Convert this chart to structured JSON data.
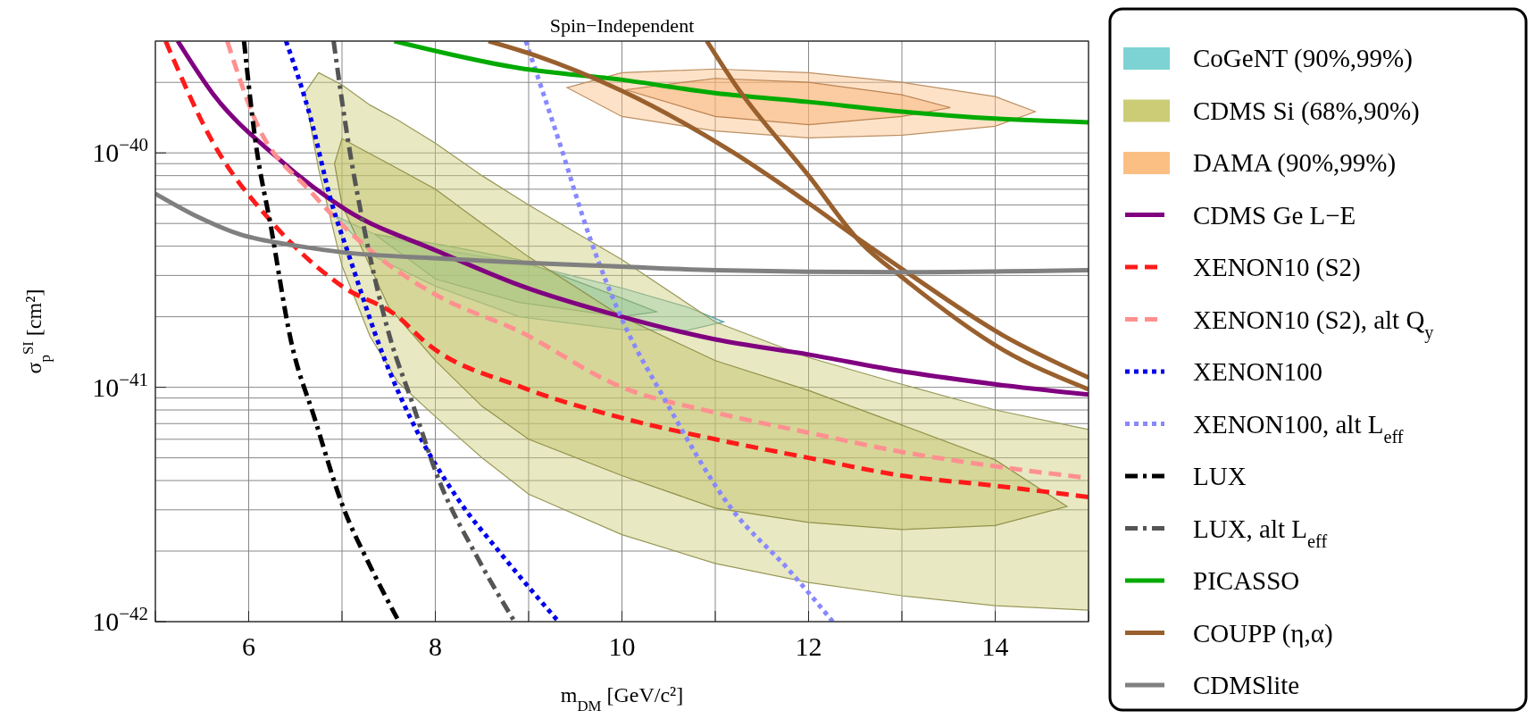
{
  "chart_data": {
    "type": "line",
    "title": "Spin−Independent",
    "xlabel": "m$_{DM}$ [GeV/c²]",
    "ylabel": "σ$_{p}$$^{SI}$ [cm²]",
    "log": "y",
    "grid": true,
    "legend": "right",
    "xlim": [
      5,
      15
    ],
    "xticks": [
      {
        "value": 5,
        "label": null
      },
      6,
      {
        "value": 7,
        "label": null
      },
      8,
      {
        "value": 9,
        "label": null
      },
      10,
      {
        "value": 11,
        "label": null
      },
      12,
      {
        "value": 13,
        "label": null
      },
      14,
      {
        "value": 15,
        "label": null
      }
    ],
    "ylim": [
      1e-42,
      3e-40
    ],
    "yticks": [
      {
        "value": 1e-42,
        "label": "10$^{−42}$"
      },
      {
        "value": 2e-42,
        "label": null
      },
      {
        "value": 3e-42,
        "label": null
      },
      {
        "value": 4e-42,
        "label": null
      },
      {
        "value": 5e-42,
        "label": null
      },
      {
        "value": 6e-42,
        "label": null
      },
      {
        "value": 7e-42,
        "label": null
      },
      {
        "value": 8e-42,
        "label": null
      },
      {
        "value": 9e-42,
        "label": null
      },
      {
        "value": 1e-41,
        "label": "10$^{−41}$"
      },
      {
        "value": 2e-41,
        "label": null
      },
      {
        "value": 3e-41,
        "label": null
      },
      {
        "value": 4e-41,
        "label": null
      },
      {
        "value": 5e-41,
        "label": null
      },
      {
        "value": 6e-41,
        "label": null
      },
      {
        "value": 7e-41,
        "label": null
      },
      {
        "value": 8e-41,
        "label": null
      },
      {
        "value": 9e-41,
        "label": null
      },
      {
        "value": 1e-40,
        "label": "10$^{−40}$"
      },
      {
        "value": 2e-40,
        "label": null
      },
      {
        "value": 3e-40,
        "label": null
      }
    ],
    "series": [
      {
        "type": "area",
        "name": "CoGeNT (90%,99%)",
        "color": "#7dd3d3",
        "x": [
          6.92,
          7.35,
          8.0,
          8.9,
          10,
          10.7,
          11.09
        ],
        "values": [
          null,
          null,
          null,
          null,
          null,
          null,
          null
        ],
        "upper": [
          5.4e-41,
          4.5e-41,
          3.9e-41,
          3.4e-41,
          2.65e-41,
          2.2e-41,
          1.9e-41
        ],
        "lower": [
          5.4e-41,
          3.6e-41,
          2.7e-41,
          2e-41,
          1.76e-41,
          1.75e-41,
          1.9e-41
        ]
      },
      {
        "type": "area",
        "color": "#5fbfa8",
        "x": [
          7.35,
          8.0,
          8.9,
          10,
          10.37
        ],
        "values": [
          null,
          null,
          null,
          null,
          null
        ],
        "upper": [
          4.5e-41,
          4.1e-41,
          3.5e-41,
          2.4e-41,
          2.1e-41
        ],
        "lower": [
          4.5e-41,
          2.9e-41,
          2.3e-41,
          2e-41,
          2.1e-41
        ]
      },
      {
        "type": "area",
        "name": "CDMS Si (68%,90%)",
        "color": "#cccc77",
        "x": [
          6.6,
          6.75,
          7.0,
          7.3,
          7.6,
          8.0,
          8.5,
          9.0,
          10,
          11,
          12,
          13,
          14,
          15
        ],
        "values": [
          null,
          null,
          null,
          null,
          null,
          null,
          null,
          null,
          null,
          null,
          null,
          null,
          null,
          null
        ],
        "upper": [
          1.8e-40,
          2.2e-40,
          1.95e-40,
          1.6e-40,
          1.38e-40,
          1.1e-40,
          8e-41,
          6e-41,
          3.5e-41,
          1.9e-41,
          1.34e-41,
          1.03e-41,
          8e-42,
          6.6e-42
        ],
        "lower": [
          1.8e-40,
          8.5e-41,
          3.3e-41,
          1.65e-41,
          1.05e-41,
          7.5e-42,
          5e-42,
          3.5e-42,
          2.35e-42,
          1.77e-42,
          1.47e-42,
          1.29e-42,
          1.17e-42,
          1.12e-42
        ]
      },
      {
        "type": "area",
        "color": "#c2c265",
        "x": [
          6.92,
          7.0,
          7.5,
          8.0,
          8.5,
          9,
          10,
          11,
          12,
          13,
          14,
          14.77
        ],
        "values": [
          null,
          null,
          null,
          null,
          null,
          null,
          null,
          null,
          null,
          null,
          null,
          null
        ],
        "upper": [
          9e-41,
          1.15e-40,
          9e-41,
          7e-41,
          5e-41,
          3.6e-41,
          2e-41,
          1.3e-41,
          9.7e-42,
          6.9e-42,
          4.9e-42,
          3.1e-42
        ],
        "lower": [
          9e-41,
          6e-41,
          2.2e-41,
          1.3e-41,
          8.3e-42,
          6e-42,
          4.2e-42,
          3.05e-42,
          2.65e-42,
          2.47e-42,
          2.57e-42,
          3.1e-42
        ]
      },
      {
        "type": "area",
        "name": "DAMA (90%,99%)",
        "color": "#fbbf84",
        "x": [
          9.41,
          10,
          11,
          12,
          13,
          14,
          14.43
        ],
        "values": [
          null,
          null,
          null,
          null,
          null,
          null,
          null
        ],
        "upper": [
          1.9e-40,
          2.2e-40,
          2.28e-40,
          2.2e-40,
          2e-40,
          1.74e-40,
          1.5e-40
        ],
        "lower": [
          1.9e-40,
          1.43e-40,
          1.24e-40,
          1.16e-40,
          1.19e-40,
          1.3e-40,
          1.5e-40
        ]
      },
      {
        "type": "area",
        "color": "#f8b070",
        "x": [
          10.04,
          11,
          12,
          13,
          13.52
        ],
        "values": [
          null,
          null,
          null,
          null,
          null
        ],
        "upper": [
          1.86e-40,
          2.08e-40,
          2e-40,
          1.77e-40,
          1.56e-40
        ],
        "lower": [
          1.86e-40,
          1.43e-40,
          1.32e-40,
          1.43e-40,
          1.56e-40
        ]
      },
      {
        "name": "CDMS Ge L−E",
        "color": "#800080",
        "line_style": "solid",
        "x": [
          5.24,
          5.62,
          6.3,
          7.05,
          8.03,
          8.93,
          10,
          11,
          12,
          13,
          14,
          15
        ],
        "values": [
          3e-40,
          1.78e-40,
          9.6e-41,
          5.7e-41,
          3.8e-41,
          2.7e-41,
          2e-41,
          1.6e-41,
          1.38e-41,
          1.17e-41,
          1.03e-41,
          9.3e-42
        ]
      },
      {
        "name": "XENON10 (S2)",
        "color": "#ff1a1a",
        "line_style": "dashed",
        "x": [
          5.11,
          5.6,
          6.28,
          7.0,
          7.6,
          7.9,
          8.93,
          10,
          11,
          12,
          13,
          14,
          15
        ],
        "values": [
          3e-40,
          1.14e-40,
          4.9e-41,
          2.7e-41,
          2e-41,
          1.55e-41,
          1e-41,
          7.4e-42,
          6e-42,
          5e-42,
          4.2e-42,
          3.8e-42,
          3.4e-42
        ]
      },
      {
        "name": "XENON10 (S2), alt Q$_{y}$",
        "color": "#ff9090",
        "line_style": "dashed",
        "x": [
          5.77,
          6.07,
          6.67,
          7.39,
          8.03,
          8.89,
          10,
          11,
          12,
          13,
          14,
          15
        ],
        "values": [
          3e-40,
          1.38e-40,
          6.8e-41,
          3.6e-41,
          2.45e-41,
          1.74e-41,
          1e-41,
          7.8e-42,
          6.4e-42,
          5.3e-42,
          4.6e-42,
          4.1e-42
        ]
      },
      {
        "name": "XENON100",
        "color": "#0000ee",
        "line_style": "dotted",
        "x": [
          6.4,
          6.67,
          6.88,
          7.09,
          7.44,
          7.74,
          8.25,
          8.68,
          9.32
        ],
        "values": [
          3e-40,
          1.38e-40,
          6.3e-41,
          3.5e-41,
          1.37e-41,
          7.3e-42,
          3.3e-42,
          2e-42,
          1e-42
        ]
      },
      {
        "name": "XENON100, alt L$_{eff}$",
        "color": "#8888ff",
        "line_style": "dotted",
        "x": [
          8.97,
          9.32,
          9.66,
          10,
          10.45,
          11.17,
          11.79,
          12.26
        ],
        "values": [
          3e-40,
          1.14e-40,
          4.3e-41,
          1.95e-41,
          9e-42,
          3.05e-42,
          1.66e-42,
          1e-42
        ]
      },
      {
        "name": "LUX",
        "color": "#000000",
        "line_style": "dashdot",
        "x": [
          5.95,
          6.07,
          6.24,
          6.45,
          6.71,
          7.01,
          7.31,
          7.61
        ],
        "values": [
          3e-40,
          1.14e-40,
          4.8e-41,
          1.6e-41,
          7.3e-42,
          3.1e-42,
          1.7e-42,
          1e-42
        ]
      },
      {
        "name": "LUX, alt L$_{eff}$",
        "color": "#555555",
        "line_style": "dashdot",
        "x": [
          6.91,
          7.05,
          7.26,
          7.52,
          7.74,
          8.03,
          8.46,
          8.85
        ],
        "values": [
          3e-40,
          1.23e-40,
          4.3e-41,
          1.6e-41,
          8.9e-42,
          4.1e-42,
          1.85e-42,
          1e-42
        ]
      },
      {
        "name": "PICASSO",
        "color": "#00aa00",
        "line_style": "solid",
        "x": [
          7.56,
          8.9,
          10,
          11,
          12,
          13,
          14,
          15
        ],
        "values": [
          3e-40,
          2.3e-40,
          2.05e-40,
          1.8e-40,
          1.65e-40,
          1.5e-40,
          1.4e-40,
          1.35e-40
        ]
      },
      {
        "name": "COUPP (η,α)",
        "color": "#99602e",
        "line_style": "solid",
        "x": [
          8.57,
          9.08,
          10,
          11.2,
          12,
          12.57,
          13,
          14.09,
          15
        ],
        "values": [
          3e-40,
          2.6e-40,
          1.84e-40,
          1e-40,
          6.1e-41,
          4.2e-41,
          3.2e-41,
          1.66e-41,
          1.1e-41
        ]
      },
      {
        "color": "#99602e",
        "line_style": "solid",
        "x": [
          10.91,
          11.22,
          12,
          12.57,
          13,
          14.09,
          15
        ],
        "values": [
          3e-40,
          1.94e-40,
          8e-41,
          4.1e-41,
          2.95e-41,
          1.44e-41,
          9.8e-42
        ]
      },
      {
        "name": "CDMSlite",
        "color": "#808080",
        "line_style": "solid",
        "x": [
          5,
          5.47,
          5.9,
          6.54,
          7,
          8.03,
          10,
          11,
          13,
          15
        ],
        "values": [
          6.7e-41,
          5.3e-41,
          4.5e-41,
          4e-41,
          3.77e-41,
          3.55e-41,
          3.27e-41,
          3.16e-41,
          3.1e-41,
          3.16e-41
        ]
      }
    ]
  }
}
